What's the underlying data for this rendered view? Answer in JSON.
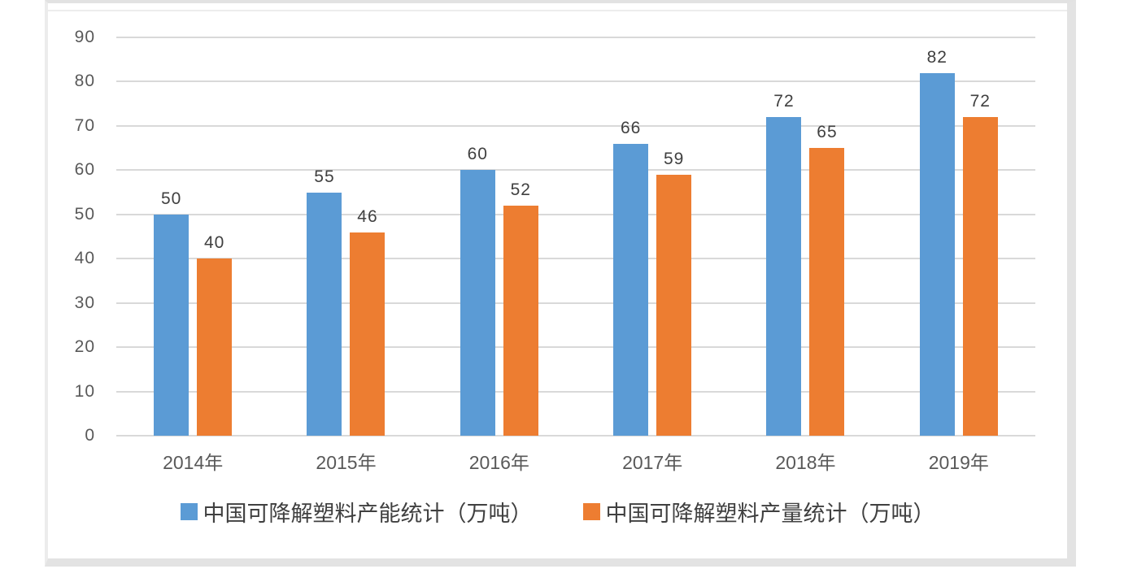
{
  "chart_data": {
    "type": "bar",
    "categories": [
      "2014年",
      "2015年",
      "2016年",
      "2017年",
      "2018年",
      "2019年"
    ],
    "series": [
      {
        "name": "中国可降解塑料产能统计（万吨）",
        "color": "#5B9BD5",
        "values": [
          50,
          55,
          60,
          66,
          72,
          82
        ]
      },
      {
        "name": "中国可降解塑料产量统计（万吨）",
        "color": "#ED7D31",
        "values": [
          40,
          46,
          52,
          59,
          65,
          72
        ]
      }
    ],
    "title": "",
    "xlabel": "",
    "ylabel": "",
    "ylim": [
      0,
      90
    ],
    "ytick_step": 10,
    "grid": true,
    "data_labels": true,
    "legend_position": "bottom"
  },
  "style": {
    "gridline_color": "#d9d9d9",
    "axis_text_color": "#595959",
    "data_label_color": "#404040",
    "legend_text_color": "#404040",
    "frame_border_color": "#e3e3e3",
    "background_color": "#ffffff"
  }
}
